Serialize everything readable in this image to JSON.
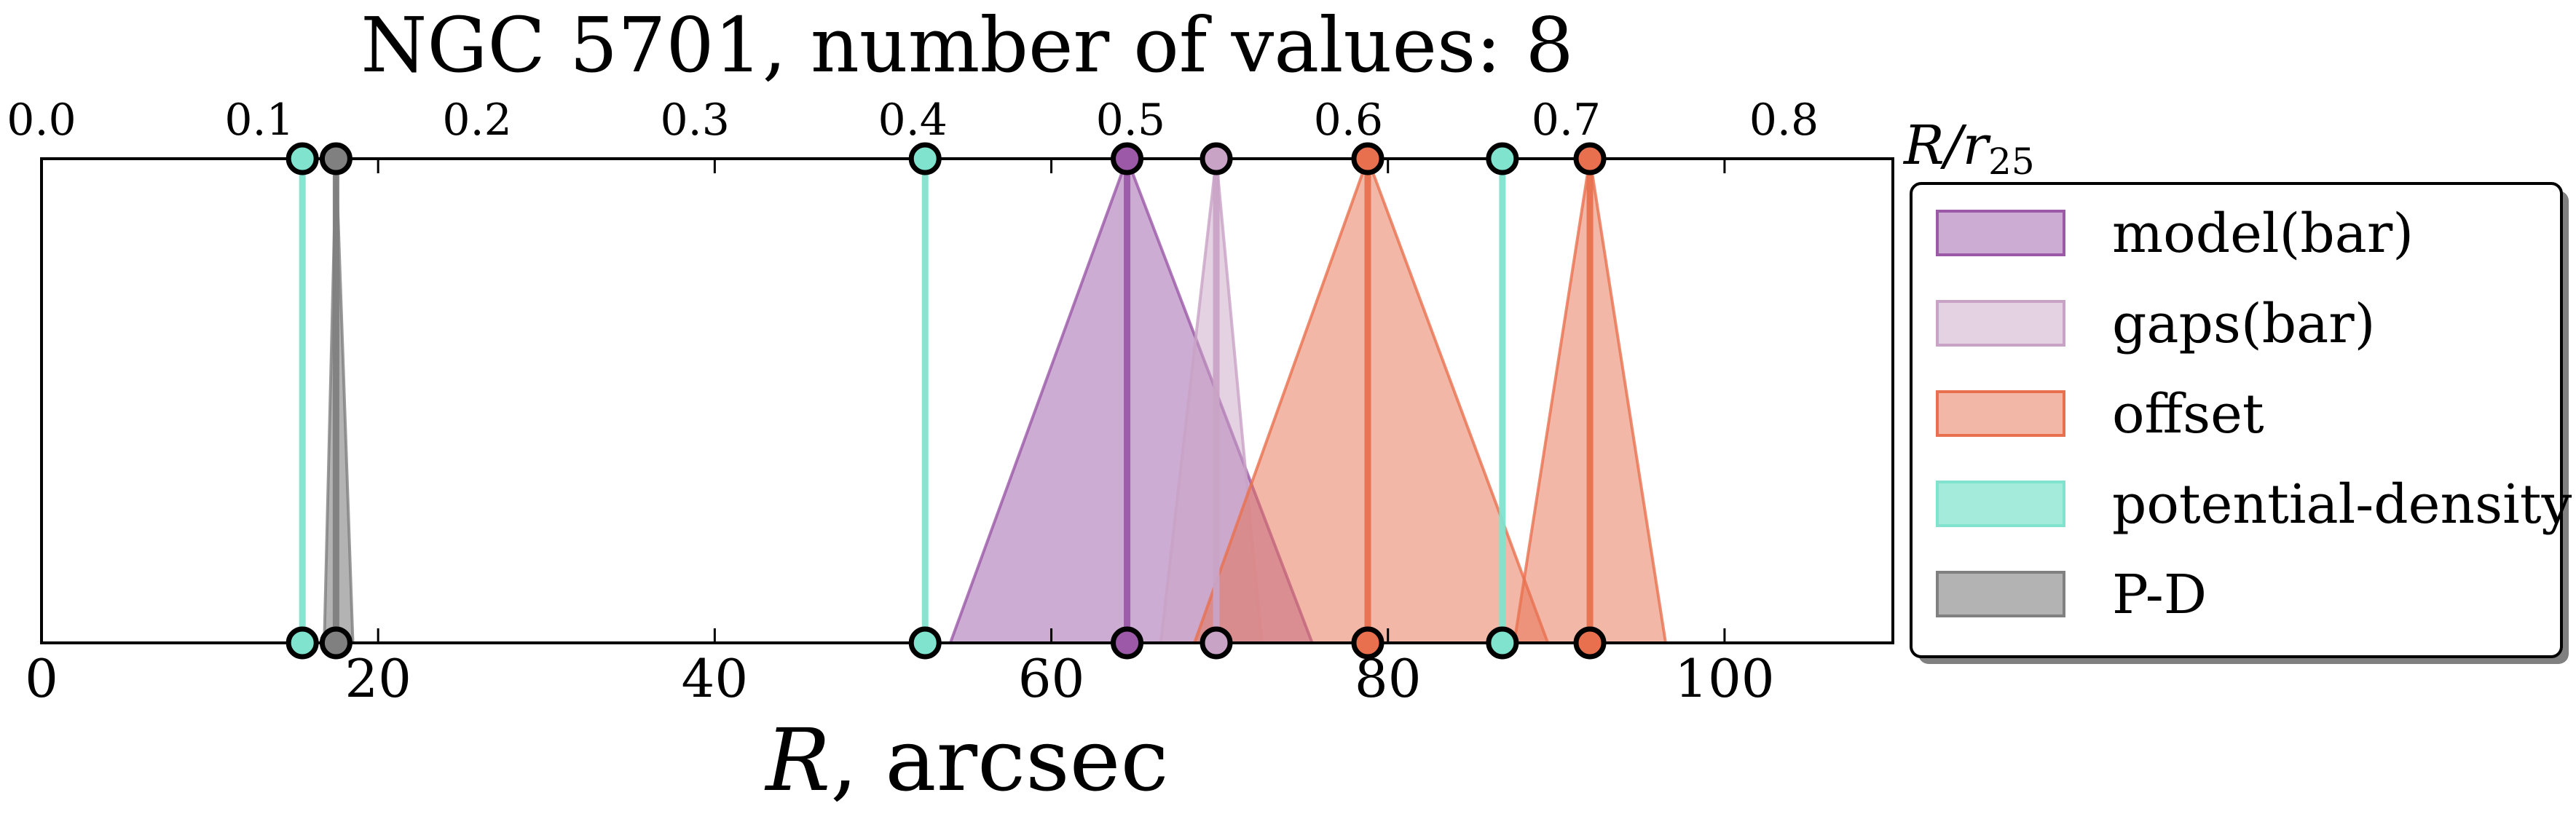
{
  "chart_data": {
    "type": "line",
    "title": "NGC 5701, number of values: 8",
    "xlabel_main": "R",
    "xlabel_rest": ", arcsec",
    "top_xlabel_main": "R/r",
    "top_xlabel_sub": "25",
    "xlim": [
      0,
      110
    ],
    "top_xlim": [
      0.0,
      0.85
    ],
    "bottom_ticks": [
      0,
      20,
      40,
      60,
      80,
      100
    ],
    "bottom_tick_labels": [
      "0",
      "20",
      "40",
      "60",
      "80",
      "100"
    ],
    "top_ticks": [
      0.0,
      0.1,
      0.2,
      0.3,
      0.4,
      0.5,
      0.6,
      0.7,
      0.8
    ],
    "top_tick_labels": [
      "0.0",
      "0.1",
      "0.2",
      "0.3",
      "0.4",
      "0.5",
      "0.6",
      "0.7",
      "0.8"
    ],
    "legend_position": "right",
    "grid": false,
    "series": [
      {
        "name": "model(bar)",
        "color": "#9b59a8",
        "fill_alpha": 0.5,
        "items": [
          {
            "center": 64.5,
            "left": 54.0,
            "right": 75.5
          }
        ]
      },
      {
        "name": "gaps(bar)",
        "color": "#c9a3c6",
        "fill_alpha": 0.5,
        "items": [
          {
            "center": 69.8,
            "left": 66.5,
            "right": 72.5
          }
        ]
      },
      {
        "name": "offset",
        "color": "#e8704f",
        "fill_alpha": 0.5,
        "items": [
          {
            "center": 78.8,
            "left": 68.5,
            "right": 89.5
          },
          {
            "center": 92.0,
            "left": 87.5,
            "right": 96.5
          }
        ]
      },
      {
        "name": "potential-density",
        "color": "#7fe3cd",
        "fill_alpha": 0.7,
        "items": [
          {
            "center": 15.5,
            "left": 15.5,
            "right": 15.5
          },
          {
            "center": 52.5,
            "left": 52.5,
            "right": 52.5
          },
          {
            "center": 86.8,
            "left": 86.8,
            "right": 86.8
          }
        ]
      },
      {
        "name": "P-D",
        "color": "#808080",
        "fill_alpha": 0.6,
        "items": [
          {
            "center": 17.5,
            "left": 16.8,
            "right": 18.5
          }
        ]
      }
    ]
  }
}
